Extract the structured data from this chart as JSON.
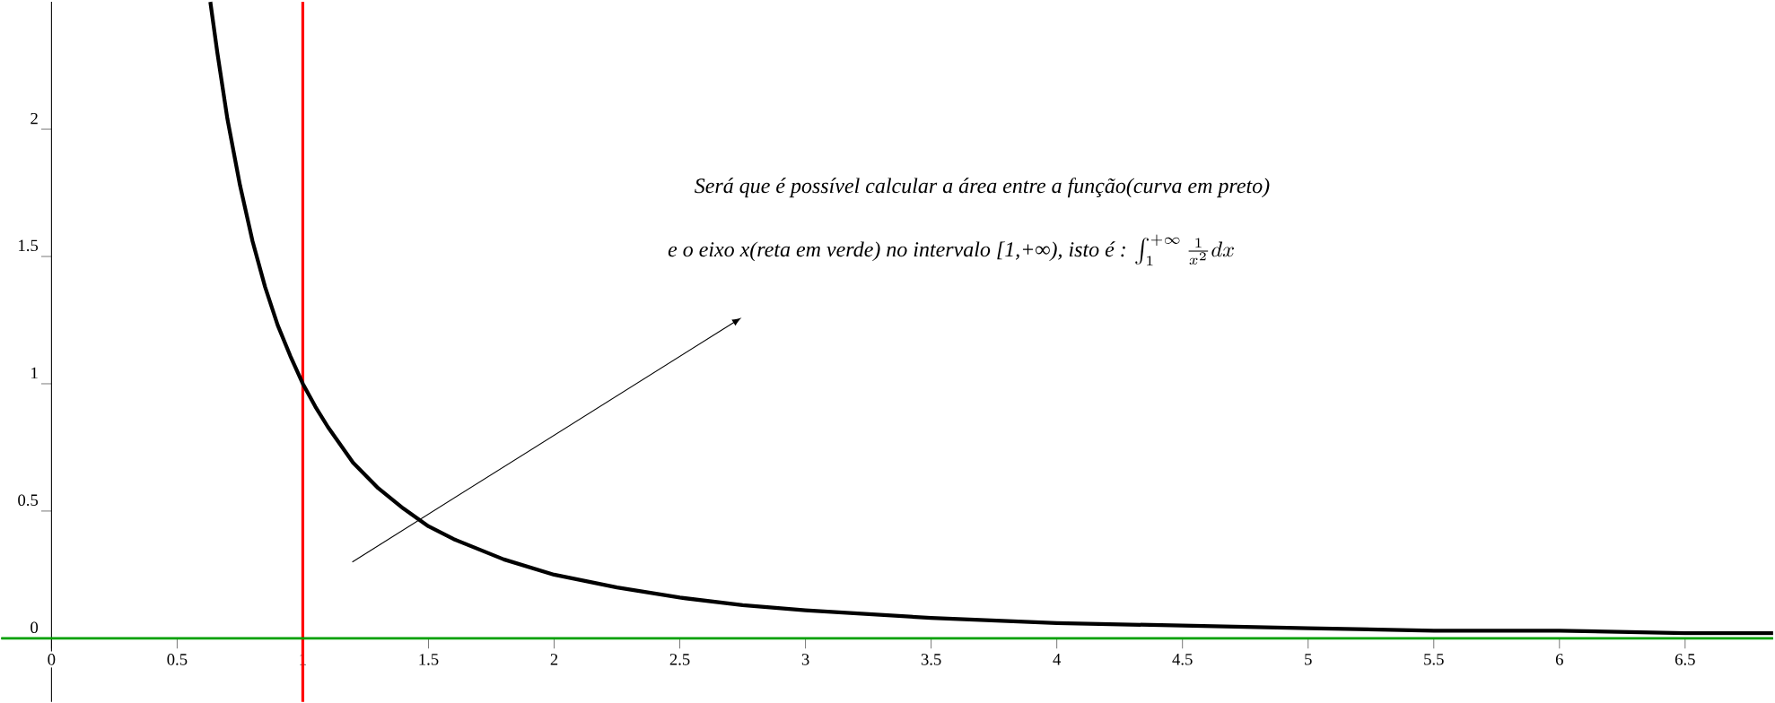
{
  "chart_data": {
    "type": "line",
    "x": [
      0.632,
      0.66,
      0.7,
      0.75,
      0.8,
      0.85,
      0.9,
      0.95,
      1,
      1.05,
      1.1,
      1.2,
      1.3,
      1.4,
      1.5,
      1.6,
      1.8,
      2,
      2.25,
      2.5,
      2.75,
      3,
      3.5,
      4,
      4.5,
      5,
      5.5,
      6,
      6.5,
      6.85
    ],
    "series": [
      {
        "color": "#000000",
        "values": [
          2.5,
          2.3,
          2.04,
          1.78,
          1.56,
          1.38,
          1.23,
          1.11,
          1,
          0.91,
          0.83,
          0.69,
          0.59,
          0.51,
          0.44,
          0.39,
          0.31,
          0.25,
          0.2,
          0.16,
          0.13,
          0.11,
          0.08,
          0.06,
          0.05,
          0.04,
          0.03,
          0.03,
          0.02,
          0.02
        ]
      }
    ],
    "xlim": [
      -0.2,
      6.85
    ],
    "ylim": [
      -0.25,
      2.5
    ],
    "xticks": [
      0,
      0.5,
      1,
      1.5,
      2,
      2.5,
      3,
      3.5,
      4,
      4.5,
      5,
      5.5,
      6,
      6.5
    ],
    "yticks": [
      0,
      0.5,
      1,
      1.5,
      2
    ],
    "grid": false,
    "marker": "none",
    "line_style": "solid",
    "ref_lines": [
      {
        "axis": "x",
        "value": 1,
        "color": "#ff0000"
      },
      {
        "axis": "y",
        "value": 0,
        "color": "#00a000"
      }
    ],
    "annotations": [
      "Será que é possível calcular a área entre a função(curva em preto)",
      "e o eixo x(reta em verde) no intervalo [1,+∞), isto é :",
      "\\int_1^{+\\infty} \\frac{1}{x^2}dx"
    ]
  }
}
